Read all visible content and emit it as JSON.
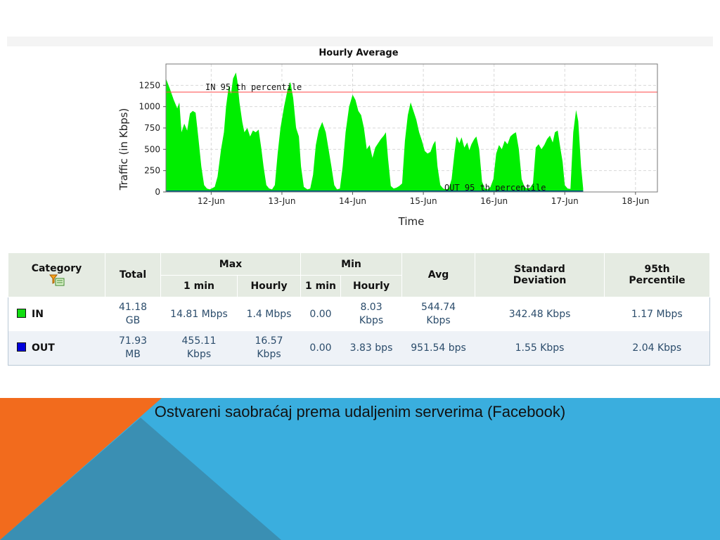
{
  "chart_data": {
    "type": "area",
    "title": "Hourly Average",
    "xlabel": "Time",
    "ylabel": "Traffic (in Kbps)",
    "ylim": [
      0,
      1500
    ],
    "yticks": [
      "0",
      "250",
      "500",
      "750",
      "1000",
      "1250"
    ],
    "ytick_values": [
      0,
      250,
      500,
      750,
      1000,
      1250
    ],
    "xticks": [
      "12-Jun",
      "13-Jun",
      "14-Jun",
      "15-Jun",
      "16-Jun",
      "17-Jun",
      "18-Jun"
    ],
    "grid": true,
    "series": [
      {
        "name": "IN",
        "color": "#00ee00",
        "points": [
          [
            11.36,
            1330
          ],
          [
            11.42,
            1200
          ],
          [
            11.47,
            1080
          ],
          [
            11.52,
            980
          ],
          [
            11.55,
            1050
          ],
          [
            11.58,
            700
          ],
          [
            11.62,
            800
          ],
          [
            11.66,
            720
          ],
          [
            11.7,
            920
          ],
          [
            11.74,
            950
          ],
          [
            11.78,
            930
          ],
          [
            11.82,
            620
          ],
          [
            11.86,
            300
          ],
          [
            11.9,
            80
          ],
          [
            11.94,
            40
          ],
          [
            11.98,
            30
          ],
          [
            12.05,
            60
          ],
          [
            12.09,
            180
          ],
          [
            12.14,
            500
          ],
          [
            12.18,
            700
          ],
          [
            12.21,
            1000
          ],
          [
            12.25,
            1250
          ],
          [
            12.28,
            1150
          ],
          [
            12.31,
            1330
          ],
          [
            12.35,
            1400
          ],
          [
            12.37,
            1300
          ],
          [
            12.4,
            1050
          ],
          [
            12.44,
            820
          ],
          [
            12.47,
            700
          ],
          [
            12.51,
            750
          ],
          [
            12.55,
            650
          ],
          [
            12.59,
            720
          ],
          [
            12.63,
            700
          ],
          [
            12.67,
            730
          ],
          [
            12.71,
            500
          ],
          [
            12.74,
            300
          ],
          [
            12.78,
            80
          ],
          [
            12.82,
            40
          ],
          [
            12.86,
            30
          ],
          [
            12.9,
            80
          ],
          [
            12.94,
            450
          ],
          [
            12.98,
            750
          ],
          [
            13.03,
            1000
          ],
          [
            13.08,
            1200
          ],
          [
            13.12,
            1290
          ],
          [
            13.16,
            1100
          ],
          [
            13.2,
            750
          ],
          [
            13.24,
            650
          ],
          [
            13.27,
            300
          ],
          [
            13.31,
            60
          ],
          [
            13.36,
            30
          ],
          [
            13.4,
            40
          ],
          [
            13.44,
            200
          ],
          [
            13.48,
            550
          ],
          [
            13.52,
            720
          ],
          [
            13.57,
            820
          ],
          [
            13.62,
            700
          ],
          [
            13.66,
            500
          ],
          [
            13.7,
            300
          ],
          [
            13.74,
            80
          ],
          [
            13.78,
            30
          ],
          [
            13.82,
            40
          ],
          [
            13.86,
            300
          ],
          [
            13.9,
            700
          ],
          [
            13.95,
            1000
          ],
          [
            14.0,
            1140
          ],
          [
            14.04,
            1080
          ],
          [
            14.08,
            950
          ],
          [
            14.12,
            900
          ],
          [
            14.16,
            750
          ],
          [
            14.2,
            500
          ],
          [
            14.24,
            550
          ],
          [
            14.28,
            400
          ],
          [
            14.32,
            520
          ],
          [
            14.36,
            570
          ],
          [
            14.4,
            620
          ],
          [
            14.44,
            660
          ],
          [
            14.47,
            700
          ],
          [
            14.5,
            400
          ],
          [
            14.54,
            70
          ],
          [
            14.58,
            40
          ],
          [
            14.62,
            50
          ],
          [
            14.66,
            70
          ],
          [
            14.7,
            100
          ],
          [
            14.74,
            600
          ],
          [
            14.78,
            900
          ],
          [
            14.82,
            1050
          ],
          [
            14.86,
            950
          ],
          [
            14.9,
            850
          ],
          [
            14.94,
            700
          ],
          [
            14.98,
            600
          ],
          [
            15.02,
            480
          ],
          [
            15.06,
            450
          ],
          [
            15.1,
            470
          ],
          [
            15.14,
            560
          ],
          [
            15.17,
            600
          ],
          [
            15.2,
            300
          ],
          [
            15.24,
            80
          ],
          [
            15.28,
            40
          ],
          [
            15.32,
            30
          ],
          [
            15.36,
            40
          ],
          [
            15.4,
            150
          ],
          [
            15.44,
            450
          ],
          [
            15.47,
            650
          ],
          [
            15.51,
            570
          ],
          [
            15.54,
            640
          ],
          [
            15.58,
            520
          ],
          [
            15.62,
            580
          ],
          [
            15.65,
            490
          ],
          [
            15.68,
            560
          ],
          [
            15.72,
            620
          ],
          [
            15.75,
            650
          ],
          [
            15.79,
            500
          ],
          [
            15.83,
            120
          ],
          [
            15.87,
            40
          ],
          [
            15.91,
            30
          ],
          [
            15.95,
            60
          ],
          [
            15.99,
            150
          ],
          [
            16.03,
            450
          ],
          [
            16.07,
            550
          ],
          [
            16.11,
            500
          ],
          [
            16.15,
            600
          ],
          [
            16.19,
            560
          ],
          [
            16.23,
            650
          ],
          [
            16.27,
            680
          ],
          [
            16.31,
            700
          ],
          [
            16.35,
            500
          ],
          [
            16.39,
            150
          ],
          [
            16.43,
            60
          ],
          [
            16.47,
            40
          ],
          [
            16.51,
            50
          ],
          [
            16.55,
            100
          ],
          [
            16.59,
            520
          ],
          [
            16.63,
            560
          ],
          [
            16.67,
            500
          ],
          [
            16.71,
            550
          ],
          [
            16.75,
            620
          ],
          [
            16.79,
            660
          ],
          [
            16.83,
            580
          ],
          [
            16.86,
            700
          ],
          [
            16.9,
            720
          ],
          [
            16.94,
            500
          ],
          [
            16.97,
            350
          ],
          [
            17.0,
            80
          ],
          [
            17.04,
            40
          ],
          [
            17.08,
            35
          ],
          [
            17.12,
            700
          ],
          [
            17.16,
            960
          ],
          [
            17.19,
            830
          ],
          [
            17.23,
            300
          ],
          [
            17.26,
            40
          ]
        ]
      },
      {
        "name": "OUT",
        "color": "#0000cc",
        "points": [
          [
            11.36,
            2
          ],
          [
            17.26,
            2
          ]
        ]
      }
    ],
    "annotations": [
      {
        "label": "IN 95 th percentile",
        "value": 1170,
        "color": "#ff4444"
      },
      {
        "label": "OUT 95 th percentile",
        "value": 2.04,
        "color": "#3333aa"
      }
    ]
  },
  "table": {
    "headers": {
      "category": "Category",
      "total": "Total",
      "max": "Max",
      "min": "Min",
      "avg": "Avg",
      "std_line1": "Standard",
      "std_line2": "Deviation",
      "pct_line1": "95th",
      "pct_line2": "Percentile",
      "max_1min": "1 min",
      "max_hourly": "Hourly",
      "min_1min": "1 min",
      "min_hourly": "Hourly"
    },
    "filter_icon": "filter-icon",
    "rows": [
      {
        "category": "IN",
        "swatch_color": "#11dd11",
        "total_1": "41.18",
        "total_2": "GB",
        "max_1min": "14.81 Mbps",
        "max_hourly": "1.4 Mbps",
        "min_1min": "0.00",
        "min_hourly_1": "8.03",
        "min_hourly_2": "Kbps",
        "avg_1": "544.74",
        "avg_2": "Kbps",
        "std": "342.48 Kbps",
        "pct": "1.17 Mbps"
      },
      {
        "category": "OUT",
        "swatch_color": "#0000dd",
        "total_1": "71.93",
        "total_2": "MB",
        "max_1min_1": "455.11",
        "max_1min_2": "Kbps",
        "max_hourly_1": "16.57",
        "max_hourly_2": "Kbps",
        "min_1min": "0.00",
        "min_hourly": "3.83 bps",
        "avg": "951.54 bps",
        "std": "1.55 Kbps",
        "pct": "2.04 Kbps"
      }
    ]
  },
  "caption": "Ostvareni saobraćaj prema udaljenim serverima (Facebook)",
  "colors": {
    "orange": "#f26b1d",
    "blue": "#3aaede",
    "dark_teal": "#3a8fb3"
  }
}
